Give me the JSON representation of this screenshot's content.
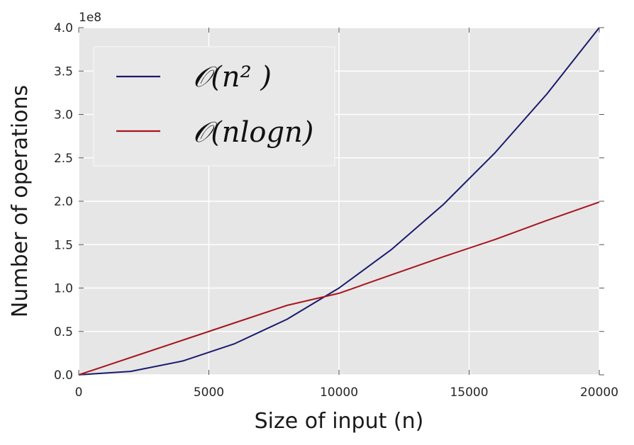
{
  "chart_data": {
    "type": "line",
    "xlabel": "Size of input (n)",
    "ylabel": "Number of operations",
    "y_exponent_label": "1e8",
    "xlim": [
      0,
      20000
    ],
    "ylim": [
      0,
      4.0
    ],
    "y_unit_multiplier": 100000000,
    "xticks": [
      0,
      5000,
      10000,
      15000,
      20000
    ],
    "xtick_labels": [
      "0",
      "5000",
      "10000",
      "15000",
      "20000"
    ],
    "yticks": [
      0,
      0.5,
      1.0,
      1.5,
      2.0,
      2.5,
      3.0,
      3.5,
      4.0
    ],
    "ytick_labels": [
      "0.0",
      "0.5",
      "1.0",
      "1.5",
      "2.0",
      "2.5",
      "3.0",
      "3.5",
      "4.0"
    ],
    "grid": true,
    "legend_position": "top-left",
    "series": [
      {
        "name": "𝒪(n² )",
        "color": "#1a1a6e",
        "x": [
          0,
          2000,
          4000,
          6000,
          8000,
          10000,
          12000,
          14000,
          16000,
          18000,
          20000
        ],
        "y": [
          0,
          0.04,
          0.16,
          0.36,
          0.64,
          1.0,
          1.44,
          1.96,
          2.56,
          3.24,
          4.0
        ]
      },
      {
        "name": "𝒪(nlogn)",
        "color": "#a8141e",
        "x": [
          0,
          2000,
          4000,
          6000,
          8000,
          10000,
          12000,
          14000,
          16000,
          18000,
          20000
        ],
        "y": [
          0,
          0.2,
          0.4,
          0.6,
          0.8,
          0.94,
          1.15,
          1.36,
          1.56,
          1.78,
          1.99
        ]
      }
    ]
  }
}
